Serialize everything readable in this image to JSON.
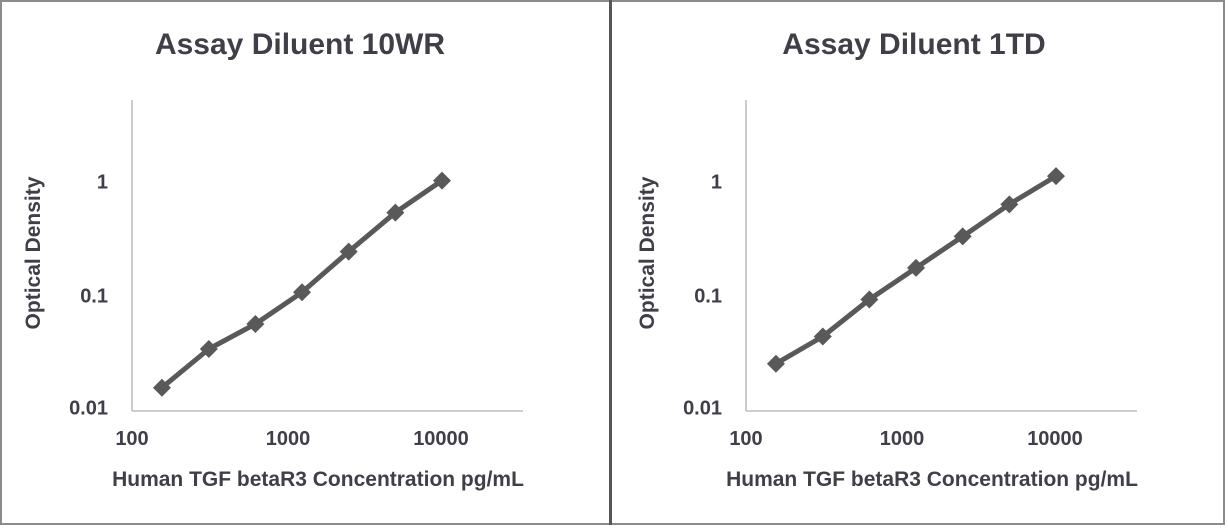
{
  "figure": {
    "background": "#ffffff",
    "border_color": "#8c8c8c",
    "divider_color": "#565656",
    "text_color": "#3f3f48",
    "axis_line_color": "#bfbfbf"
  },
  "chart_data": [
    {
      "type": "line",
      "title": "Assay Diluent 10WR",
      "xlabel": "Human TGF betaR3 Concentration pg/mL",
      "ylabel": "Optical Density",
      "x_scale": "log",
      "y_scale": "log",
      "xlim": [
        100,
        33000
      ],
      "ylim": [
        0.01,
        5.3
      ],
      "x_tick_labels": [
        "100",
        "1000",
        "10000"
      ],
      "y_tick_labels": [
        "1",
        "0.1",
        "0.01"
      ],
      "grid": false,
      "legend": "none",
      "marker": "diamond",
      "line_color": "#595959",
      "x": [
        156,
        313,
        625,
        1250,
        2500,
        5000,
        10000
      ],
      "od": [
        0.016,
        0.035,
        0.058,
        0.11,
        0.25,
        0.55,
        1.05
      ]
    },
    {
      "type": "line",
      "title": "Assay Diluent 1TD",
      "xlabel": "Human TGF betaR3 Concentration pg/mL",
      "ylabel": "Optical Density",
      "x_scale": "log",
      "y_scale": "log",
      "xlim": [
        100,
        33000
      ],
      "ylim": [
        0.01,
        5.3
      ],
      "x_tick_labels": [
        "100",
        "1000",
        "10000"
      ],
      "y_tick_labels": [
        "1",
        "0.1",
        "0.01"
      ],
      "grid": false,
      "legend": "none",
      "marker": "diamond",
      "line_color": "#595959",
      "x": [
        156,
        313,
        625,
        1250,
        2500,
        5000,
        10000
      ],
      "od": [
        0.026,
        0.045,
        0.095,
        0.18,
        0.34,
        0.65,
        1.15
      ]
    }
  ]
}
